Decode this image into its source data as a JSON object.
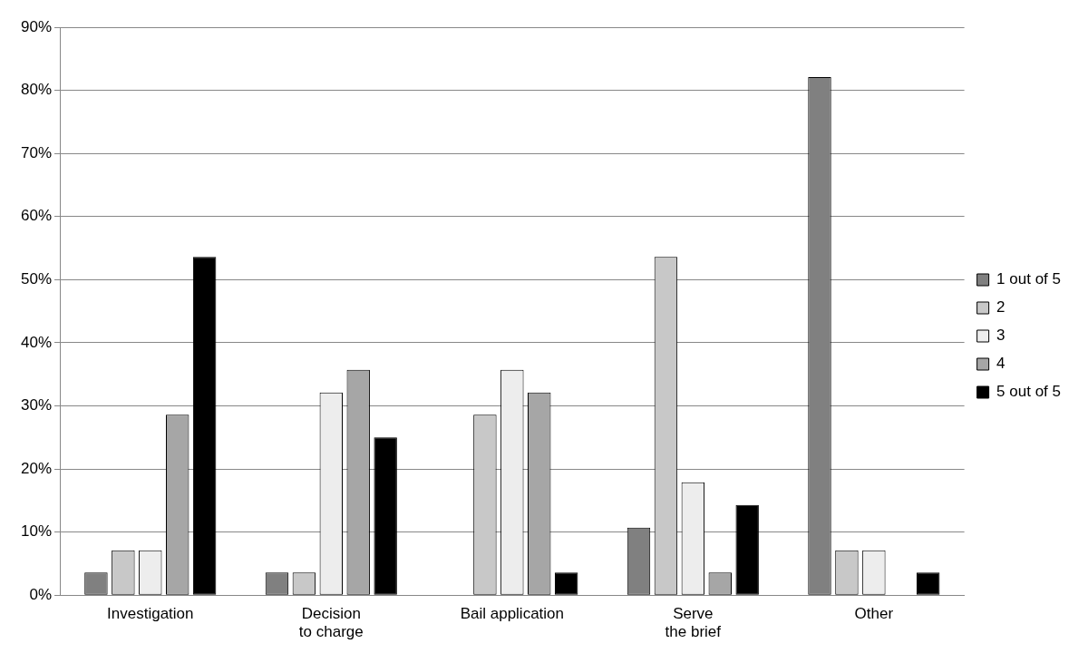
{
  "chart_data": {
    "type": "bar",
    "categories": [
      "Investigation",
      "Decision\nto charge",
      "Bail application",
      "Serve\nthe brief",
      "Other"
    ],
    "series": [
      {
        "name": "1 out of 5",
        "color": "#808080",
        "values": [
          3.6,
          3.6,
          0,
          10.7,
          82.1
        ]
      },
      {
        "name": "2",
        "color": "#c8c8c8",
        "values": [
          7.1,
          3.6,
          28.6,
          53.6,
          7.1
        ]
      },
      {
        "name": "3",
        "color": "#ededed",
        "values": [
          7.1,
          32.1,
          35.7,
          17.9,
          7.1
        ]
      },
      {
        "name": "4",
        "color": "#a6a6a6",
        "values": [
          28.6,
          35.7,
          32.1,
          3.6,
          0
        ]
      },
      {
        "name": "5 out of 5",
        "color": "#000000",
        "values": [
          53.6,
          25,
          3.6,
          14.3,
          3.6
        ]
      }
    ],
    "ylim": [
      0,
      90
    ],
    "yticks": [
      {
        "value": 0,
        "label": "0%"
      },
      {
        "value": 10,
        "label": "10%"
      },
      {
        "value": 20,
        "label": "20%"
      },
      {
        "value": 30,
        "label": "30%"
      },
      {
        "value": 40,
        "label": "40%"
      },
      {
        "value": 50,
        "label": "50%"
      },
      {
        "value": 60,
        "label": "60%"
      },
      {
        "value": 70,
        "label": "70%"
      },
      {
        "value": 80,
        "label": "80%"
      },
      {
        "value": 90,
        "label": "90%"
      }
    ],
    "grid": "y",
    "legend": "right"
  }
}
